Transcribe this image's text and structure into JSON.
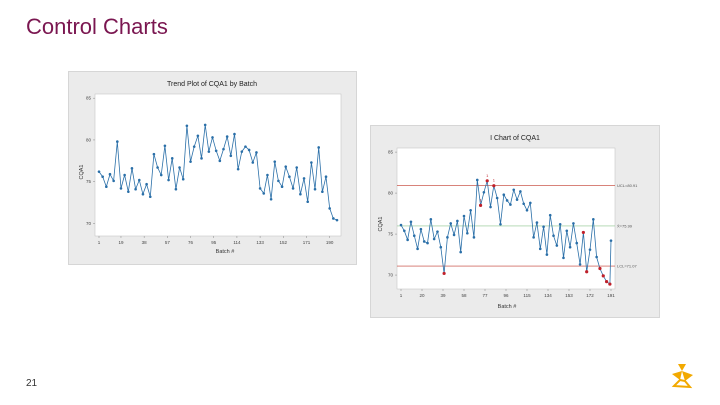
{
  "slide": {
    "title": "Control Charts",
    "page_number": "21",
    "logo_icon": "brand-logo-icon"
  },
  "colors": {
    "title": "#7a1650",
    "series": "#2a6fa8",
    "out_of_control": "#c0202a",
    "ucl_line": "#c0392b",
    "center_line": "#8bc48b",
    "lcl_line": "#c0392b",
    "logo": "#f2a900"
  },
  "chart_data": [
    {
      "type": "line",
      "title": "Trend Plot of CQA1 by Batch",
      "xlabel": "Batch #",
      "ylabel": "CQA1",
      "xlim": [
        1,
        196
      ],
      "ylim": [
        68.5,
        85.5
      ],
      "xticks": [
        1,
        19,
        38,
        57,
        76,
        95,
        114,
        133,
        152,
        171,
        190
      ],
      "yticks": [
        70,
        75,
        80,
        85
      ],
      "grid": false,
      "series": [
        {
          "x": [
            1,
            4,
            7,
            10,
            13,
            16,
            19,
            22,
            25,
            28,
            31,
            34,
            37,
            40,
            43,
            46,
            49,
            52,
            55,
            58,
            61,
            64,
            67,
            70,
            73,
            76,
            79,
            82,
            85,
            88,
            91,
            94,
            97,
            100,
            103,
            106,
            109,
            112,
            115,
            118,
            121,
            124,
            127,
            130,
            133,
            136,
            139,
            142,
            145,
            148,
            151,
            154,
            157,
            160,
            163,
            166,
            169,
            172,
            175,
            178,
            181,
            184,
            187,
            190,
            193,
            196
          ],
          "y": [
            76.2,
            75.6,
            74.4,
            75.9,
            75.1,
            79.8,
            74.2,
            75.8,
            73.8,
            76.6,
            74.1,
            75.2,
            73.5,
            74.7,
            73.2,
            78.3,
            76.7,
            75.8,
            79.3,
            75.2,
            77.8,
            74.1,
            76.7,
            75.3,
            81.7,
            77.4,
            79.2,
            80.5,
            77.8,
            81.8,
            78.6,
            80.3,
            78.7,
            77.5,
            78.9,
            80.4,
            78.1,
            80.7,
            76.5,
            78.6,
            79.2,
            78.8,
            77.3,
            78.5,
            74.2,
            73.6,
            75.8,
            72.9,
            77.4,
            75.1,
            74.4,
            76.8,
            75.6,
            74.2,
            76.7,
            73.5,
            75.4,
            72.6,
            77.3,
            74.1,
            79.1,
            73.8,
            75.6,
            71.8,
            70.6,
            70.4
          ]
        }
      ]
    },
    {
      "type": "line",
      "title": "I Chart of CQA1",
      "xlabel": "Batch #",
      "ylabel": "CQA1",
      "xlim": [
        1,
        191
      ],
      "ylim": [
        68.3,
        85.5
      ],
      "xticks": [
        1,
        20,
        39,
        58,
        77,
        96,
        115,
        134,
        153,
        172,
        191
      ],
      "yticks": [
        70,
        75,
        80,
        85
      ],
      "grid": false,
      "limits": {
        "ucl": 80.9,
        "center": 75.99,
        "lcl": 71.1,
        "ucl_label": "UCL=80.91",
        "center_label": "X̄=75.99",
        "lcl_label": "LCL=71.07"
      },
      "series": [
        {
          "x": [
            1,
            4,
            7,
            10,
            13,
            16,
            19,
            22,
            25,
            28,
            31,
            34,
            37,
            40,
            43,
            46,
            49,
            52,
            55,
            58,
            61,
            64,
            67,
            70,
            73,
            76,
            79,
            82,
            85,
            88,
            91,
            94,
            97,
            100,
            103,
            106,
            109,
            112,
            115,
            118,
            121,
            124,
            127,
            130,
            133,
            136,
            139,
            142,
            145,
            148,
            151,
            154,
            157,
            160,
            163,
            166,
            169,
            172,
            175,
            178,
            181,
            184,
            187,
            190,
            191
          ],
          "y": [
            76.1,
            75.4,
            74.3,
            76.5,
            74.8,
            73.2,
            75.6,
            74.1,
            73.9,
            76.8,
            74.4,
            75.3,
            73.4,
            70.2,
            74.6,
            76.3,
            74.9,
            76.6,
            72.8,
            77.2,
            75.1,
            77.9,
            74.6,
            81.6,
            78.5,
            80.1,
            81.5,
            78.3,
            80.9,
            79.4,
            76.2,
            79.8,
            79.1,
            78.6,
            80.4,
            79.2,
            80.2,
            78.7,
            77.9,
            78.8,
            74.6,
            76.4,
            73.2,
            75.9,
            72.5,
            77.3,
            74.8,
            73.6,
            76.2,
            72.1,
            75.4,
            73.4,
            76.3,
            73.9,
            71.3,
            75.2,
            70.4,
            73.1,
            76.8,
            72.2,
            70.8,
            69.9,
            69.2,
            68.9,
            74.2
          ],
          "flags": [
            {
              "x": 40,
              "label": ""
            },
            {
              "x": 73,
              "label": "1"
            },
            {
              "x": 79,
              "label": "1"
            },
            {
              "x": 85,
              "label": "1"
            },
            {
              "x": 166,
              "label": ""
            },
            {
              "x": 169,
              "label": ""
            },
            {
              "x": 181,
              "label": ""
            },
            {
              "x": 184,
              "label": ""
            },
            {
              "x": 187,
              "label": ""
            },
            {
              "x": 190,
              "label": ""
            }
          ]
        }
      ]
    }
  ]
}
